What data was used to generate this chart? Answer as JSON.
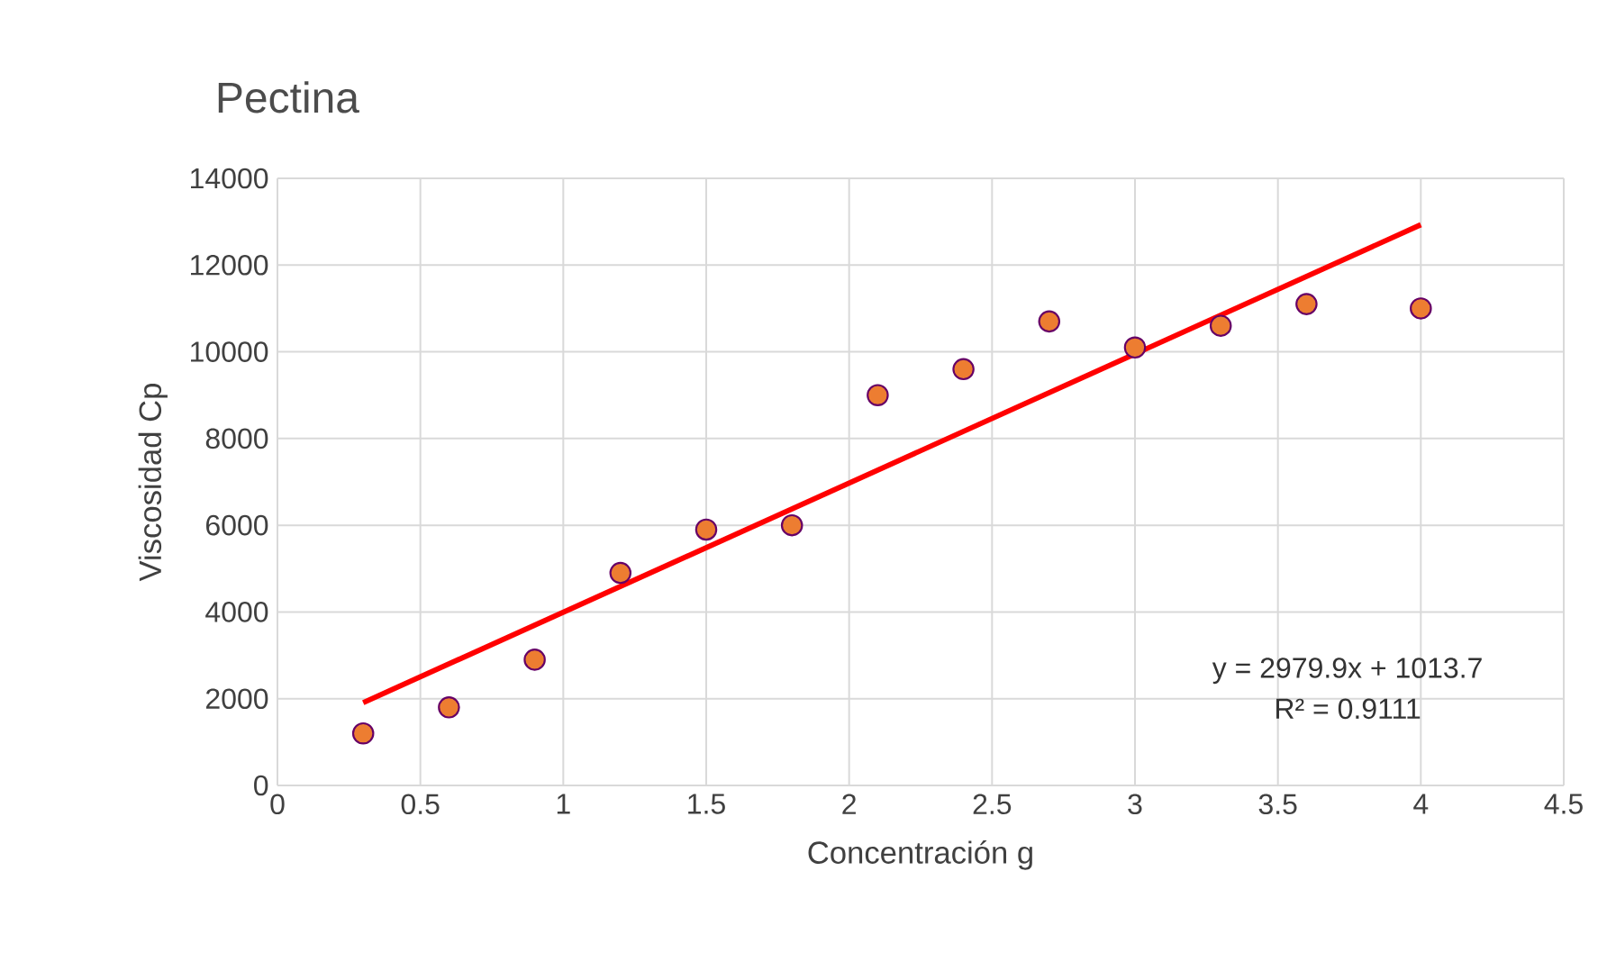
{
  "chart_data": {
    "type": "scatter",
    "title": "Pectina",
    "xlabel": "Concentración g",
    "ylabel": "Viscosidad Cp",
    "x": [
      0.3,
      0.6,
      0.9,
      1.2,
      1.5,
      1.8,
      2.1,
      2.4,
      2.7,
      3.0,
      3.3,
      3.6,
      4.0
    ],
    "series": [
      {
        "marker": "circle",
        "color": "#ed7d31",
        "values": [
          1200,
          1800,
          2900,
          4900,
          5900,
          6000,
          9000,
          9600,
          10700,
          10100,
          10600,
          11100,
          11000
        ]
      },
      {
        "type": "line",
        "marker": "none",
        "color": "#ff0000",
        "x": [
          0.3,
          4.0
        ],
        "values": [
          1910,
          12930
        ]
      }
    ],
    "xlim": [
      0,
      4.5
    ],
    "xticks": [
      0,
      0.5,
      1,
      1.5,
      2,
      2.5,
      3,
      3.5,
      4,
      4.5
    ],
    "ylim": [
      0,
      14000
    ],
    "yticks": [
      0,
      2000,
      4000,
      6000,
      8000,
      10000,
      12000,
      14000
    ],
    "grid": true,
    "annotations": [
      "y = 2979.9x + 1013.7",
      "R² = 0.9111"
    ]
  }
}
